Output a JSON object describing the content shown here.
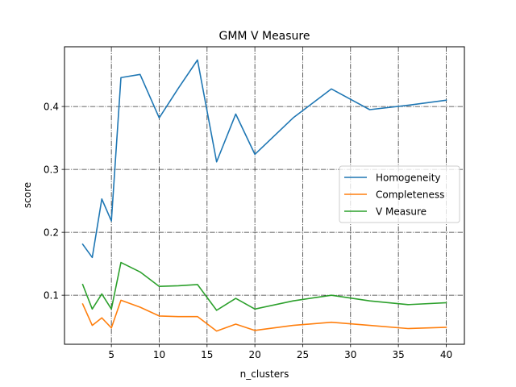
{
  "chart_data": {
    "type": "line",
    "title": "GMM V Measure",
    "xlabel": "n_clusters",
    "ylabel": "score",
    "xlim": [
      0.1,
      41.9
    ],
    "ylim": [
      0.022,
      0.495
    ],
    "xticks": [
      5,
      10,
      15,
      20,
      25,
      30,
      35,
      40
    ],
    "xtick_labels": [
      "5",
      "10",
      "15",
      "20",
      "25",
      "30",
      "35",
      "40"
    ],
    "yticks": [
      0.1,
      0.2,
      0.3,
      0.4
    ],
    "ytick_labels": [
      "0.1",
      "0.2",
      "0.3",
      "0.4"
    ],
    "grid": true,
    "grid_style": "dashdot",
    "legend_position": "center-right",
    "x": [
      2,
      3,
      4,
      5,
      6,
      8,
      10,
      12,
      14,
      16,
      18,
      20,
      24,
      28,
      32,
      36,
      40
    ],
    "series": [
      {
        "name": "Homogeneity",
        "color": "#1f77b4",
        "values": [
          0.181,
          0.16,
          0.253,
          0.218,
          0.446,
          0.451,
          0.382,
          0.429,
          0.474,
          0.312,
          0.388,
          0.324,
          0.382,
          0.428,
          0.395,
          0.402,
          0.41
        ]
      },
      {
        "name": "Completeness",
        "color": "#ff7f0e",
        "values": [
          0.086,
          0.052,
          0.064,
          0.048,
          0.092,
          0.081,
          0.067,
          0.066,
          0.066,
          0.043,
          0.054,
          0.044,
          0.052,
          0.057,
          0.052,
          0.047,
          0.049
        ]
      },
      {
        "name": "V Measure",
        "color": "#2ca02c",
        "values": [
          0.117,
          0.078,
          0.102,
          0.078,
          0.152,
          0.137,
          0.114,
          0.115,
          0.117,
          0.076,
          0.095,
          0.078,
          0.091,
          0.1,
          0.091,
          0.085,
          0.088
        ]
      }
    ]
  }
}
